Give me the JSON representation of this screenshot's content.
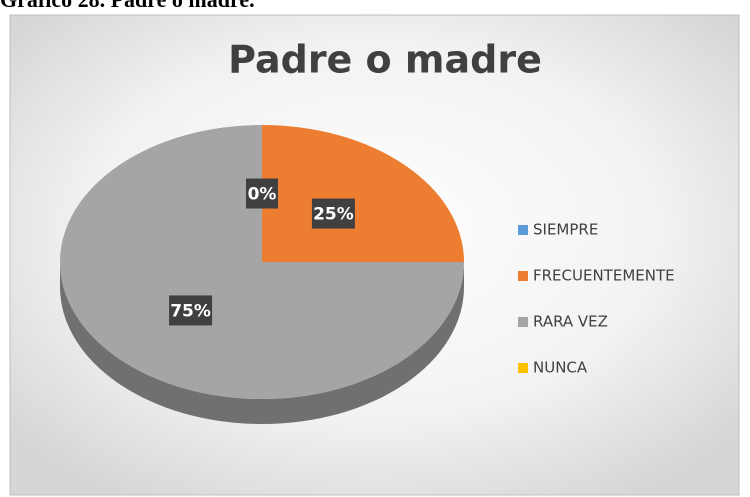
{
  "chart_data": {
    "type": "pie",
    "caption": "Gráfico 28. Padre o madre.",
    "title": "Padre o madre",
    "categories": [
      "SIEMPRE",
      "FRECUENTEMENTE",
      "RARA VEZ",
      "NUNCA"
    ],
    "values": [
      0,
      25,
      75,
      0
    ],
    "value_labels": [
      "0%",
      "25%",
      "75%",
      null
    ],
    "colors": [
      "#5b9bd5",
      "#ed7d31",
      "#a5a5a5",
      "#ffc000"
    ],
    "legend": "right"
  }
}
